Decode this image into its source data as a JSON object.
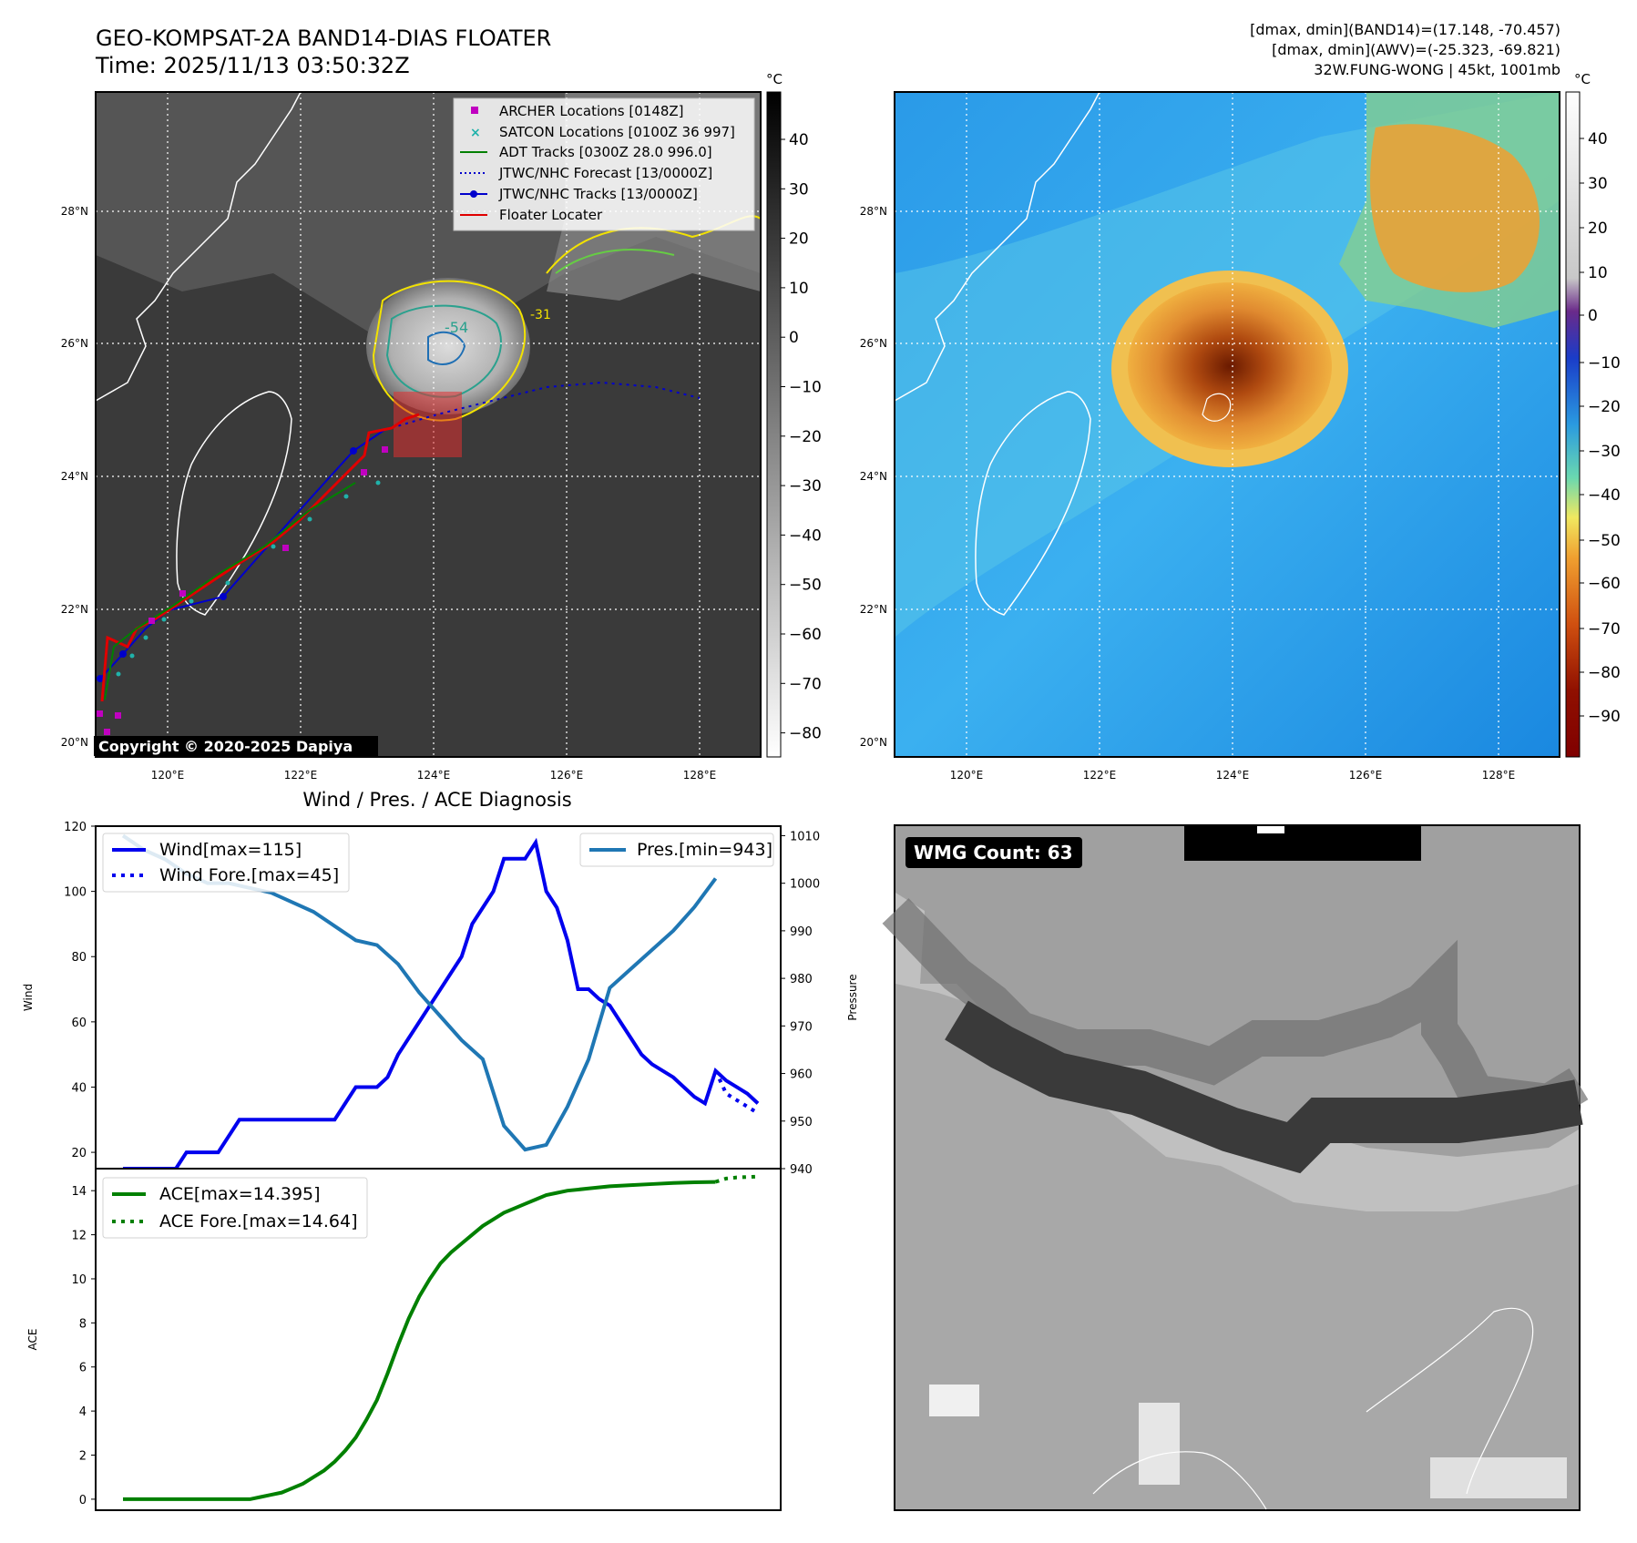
{
  "header": {
    "title": "GEO-KOMPSAT-2A BAND14-DIAS FLOATER",
    "time": "Time: 2025/11/13 03:50:32Z",
    "band_range": "[dmax, dmin](BAND14)=(17.148, -70.457)",
    "awv_range": "[dmax, dmin](AWV)=(-25.323, -69.821)",
    "storm": "32W.FUNG-WONG | 45kt, 1001mb"
  },
  "map": {
    "lat_ticks": [
      "20°N",
      "22°N",
      "24°N",
      "26°N",
      "28°N"
    ],
    "lon_ticks": [
      "120°E",
      "122°E",
      "124°E",
      "126°E",
      "128°E"
    ],
    "legend": [
      {
        "label": "ARCHER Locations [0148Z]",
        "color": "#c000c0",
        "symbol": "square"
      },
      {
        "label": "SATCON Locations [0100Z 36 997]",
        "color": "#20b2aa",
        "symbol": "x"
      },
      {
        "label": "ADT Tracks [0300Z 28.0 996.0]",
        "color": "#008000",
        "symbol": "line"
      },
      {
        "label": "JTWC/NHC Forecast [13/0000Z]",
        "color": "#0000cc",
        "symbol": "dotted"
      },
      {
        "label": "JTWC/NHC Tracks [13/0000Z]",
        "color": "#0000cc",
        "symbol": "line-dot"
      },
      {
        "label": "Floater Locater",
        "color": "#e00000",
        "symbol": "line"
      }
    ],
    "copyright": "Copyright © 2020-2025 Dapiya",
    "contour_labels": [
      "-54",
      "-31"
    ],
    "gray_colorbar": {
      "unit": "°C",
      "ticks": [
        "40",
        "30",
        "20",
        "10",
        "0",
        "−10",
        "−20",
        "−30",
        "−40",
        "−50",
        "−60",
        "−70",
        "−80"
      ]
    },
    "color_colorbar": {
      "unit": "°C",
      "ticks": [
        "40",
        "30",
        "20",
        "10",
        "0",
        "−10",
        "−20",
        "−30",
        "−40",
        "−50",
        "−60",
        "−70",
        "−80",
        "−90"
      ]
    }
  },
  "wmg": {
    "label": "WMG Count: 63"
  },
  "chart_data": [
    {
      "type": "line",
      "title": "Wind / Pres. / ACE Diagnosis",
      "xlabel": "",
      "ylabel": "Wind",
      "ylabel_right": "Pressure",
      "ylim": [
        15,
        120
      ],
      "ylim_right": [
        940,
        1012
      ],
      "yticks": [
        20,
        40,
        60,
        80,
        100,
        120
      ],
      "yticks_right": [
        940,
        950,
        960,
        970,
        980,
        990,
        1000,
        1010
      ],
      "series": [
        {
          "name": "Wind[max=115]",
          "axis": "left",
          "color": "#0000ee",
          "style": "solid",
          "x": [
            0,
            1,
            2,
            3,
            4,
            5,
            6,
            7,
            8,
            9,
            10,
            11,
            12,
            13,
            14,
            15,
            16,
            17,
            18,
            19,
            20,
            21,
            22,
            23,
            24,
            25,
            26,
            27,
            28,
            29,
            30,
            31,
            32,
            33,
            34,
            35,
            36,
            37,
            38,
            39,
            40,
            41,
            42,
            43,
            44,
            45,
            46,
            47,
            48,
            49,
            50,
            51,
            52,
            53,
            54,
            55,
            56,
            57,
            58,
            59,
            60
          ],
          "values": [
            15,
            15,
            15,
            15,
            15,
            15,
            20,
            20,
            20,
            20,
            25,
            30,
            30,
            30,
            30,
            30,
            30,
            30,
            30,
            30,
            30,
            35,
            40,
            40,
            40,
            43,
            50,
            55,
            60,
            65,
            70,
            75,
            80,
            90,
            95,
            100,
            110,
            110,
            110,
            115,
            100,
            95,
            85,
            70,
            70,
            67,
            65,
            60,
            55,
            50,
            47,
            45,
            43,
            40,
            37,
            35,
            45,
            42,
            40,
            38,
            35
          ],
          "note": "approx trace"
        },
        {
          "name": "Wind Fore.[max=45]",
          "axis": "left",
          "color": "#0000ee",
          "style": "dotted",
          "x": [
            56,
            57,
            58,
            59,
            60
          ],
          "values": [
            45,
            38,
            36,
            34,
            32
          ]
        },
        {
          "name": "Pres.[min=943]",
          "axis": "right",
          "color": "#1f77b4",
          "style": "solid",
          "x": [
            0,
            2,
            4,
            6,
            8,
            10,
            12,
            14,
            16,
            18,
            20,
            22,
            24,
            26,
            28,
            30,
            32,
            34,
            36,
            38,
            40,
            42,
            44,
            46,
            48,
            50,
            52,
            54,
            56
          ],
          "values": [
            1010,
            1007,
            1005,
            1002,
            1000,
            1000,
            999,
            998,
            996,
            994,
            991,
            988,
            987,
            983,
            977,
            972,
            967,
            963,
            949,
            944,
            945,
            953,
            963,
            978,
            982,
            986,
            990,
            995,
            1001
          ]
        }
      ]
    },
    {
      "type": "line",
      "ylabel": "ACE",
      "ylim": [
        -0.5,
        15
      ],
      "yticks": [
        0,
        2,
        4,
        6,
        8,
        10,
        12,
        14
      ],
      "series": [
        {
          "name": "ACE[max=14.395]",
          "color": "#008000",
          "style": "solid",
          "x": [
            0,
            4,
            8,
            10,
            12,
            13,
            14,
            15,
            16,
            17,
            18,
            19,
            20,
            21,
            22,
            23,
            24,
            25,
            26,
            27,
            28,
            29,
            30,
            31,
            32,
            33,
            34,
            35,
            36,
            37,
            38,
            39,
            40,
            41,
            42,
            44,
            46,
            48,
            50,
            52,
            54,
            56
          ],
          "values": [
            0,
            0,
            0,
            0,
            0,
            0.1,
            0.2,
            0.3,
            0.5,
            0.7,
            1.0,
            1.3,
            1.7,
            2.2,
            2.8,
            3.6,
            4.5,
            5.7,
            7.0,
            8.2,
            9.2,
            10.0,
            10.7,
            11.2,
            11.6,
            12.0,
            12.4,
            12.7,
            13.0,
            13.2,
            13.4,
            13.6,
            13.8,
            13.9,
            14.0,
            14.1,
            14.2,
            14.25,
            14.3,
            14.35,
            14.38,
            14.395
          ]
        },
        {
          "name": "ACE Fore.[max=14.64]",
          "color": "#008000",
          "style": "dotted",
          "x": [
            56,
            57,
            58,
            59,
            60
          ],
          "values": [
            14.4,
            14.55,
            14.6,
            14.62,
            14.64
          ]
        }
      ]
    }
  ]
}
